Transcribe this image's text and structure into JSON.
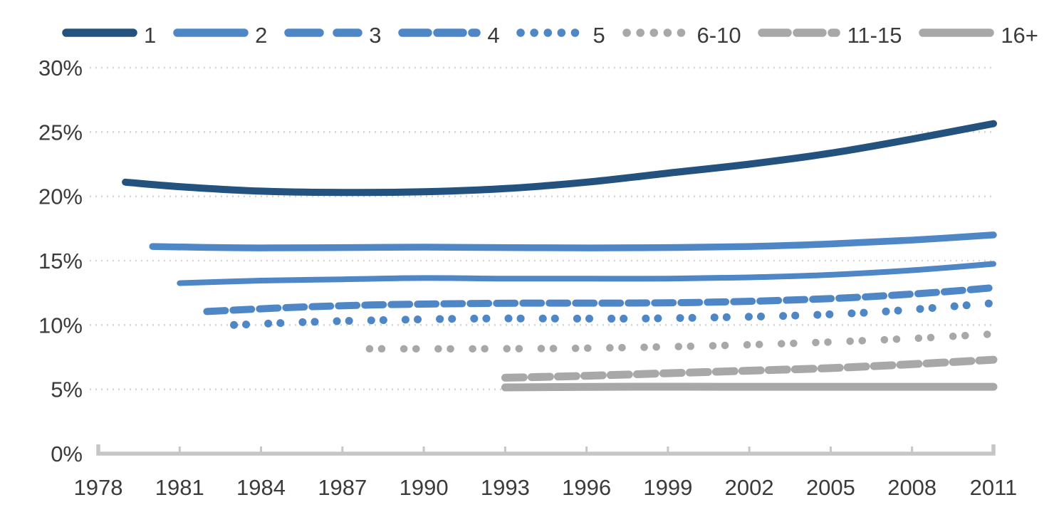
{
  "chart_data": {
    "type": "line",
    "title": "",
    "x_axis": {
      "tick_labels": [
        "1978",
        "1981",
        "1984",
        "1987",
        "1990",
        "1993",
        "1996",
        "1999",
        "2002",
        "2005",
        "2008",
        "2011"
      ],
      "range": [
        1978,
        2011
      ]
    },
    "y_axis": {
      "tick_labels": [
        "30%",
        "25%",
        "20%",
        "15%",
        "10%",
        "5%",
        "0%"
      ],
      "tick_values": [
        30,
        25,
        20,
        15,
        10,
        5,
        0
      ],
      "range": [
        0,
        30
      ],
      "unit": "percent"
    },
    "grid": "horizontal dotted gridlines",
    "legend_position": "top",
    "colors": {
      "dark_blue": "#24527E",
      "blue": "#4E86C6",
      "gray": "#A8A8A8",
      "grid": "#D2D2D2",
      "axis": "#C6C6C6",
      "text": "#3B3B3B"
    },
    "series": [
      {
        "label": "1",
        "color_key": "dark_blue",
        "plot_style": "solid",
        "legend_style": "solid",
        "points": [
          [
            1979,
            21.1
          ],
          [
            1981,
            20.75
          ],
          [
            1984,
            20.4
          ],
          [
            1987,
            20.3
          ],
          [
            1990,
            20.35
          ],
          [
            1993,
            20.6
          ],
          [
            1996,
            21.1
          ],
          [
            1999,
            21.8
          ],
          [
            2002,
            22.5
          ],
          [
            2005,
            23.35
          ],
          [
            2008,
            24.45
          ],
          [
            2011,
            25.65
          ]
        ]
      },
      {
        "label": "2",
        "color_key": "blue",
        "plot_style": "solid",
        "legend_style": "solid",
        "points": [
          [
            1980,
            16.1
          ],
          [
            1983,
            16.0
          ],
          [
            1986,
            16.0
          ],
          [
            1990,
            16.05
          ],
          [
            1994,
            16.0
          ],
          [
            1998,
            16.0
          ],
          [
            2002,
            16.1
          ],
          [
            2005,
            16.3
          ],
          [
            2008,
            16.6
          ],
          [
            2011,
            17.0
          ]
        ]
      },
      {
        "label": "3",
        "color_key": "blue",
        "plot_style": "solid",
        "legend_style": "long-dash",
        "points": [
          [
            1981,
            13.25
          ],
          [
            1984,
            13.45
          ],
          [
            1987,
            13.55
          ],
          [
            1990,
            13.65
          ],
          [
            1993,
            13.6
          ],
          [
            1996,
            13.6
          ],
          [
            1999,
            13.6
          ],
          [
            2002,
            13.7
          ],
          [
            2005,
            13.9
          ],
          [
            2008,
            14.25
          ],
          [
            2011,
            14.75
          ]
        ]
      },
      {
        "label": "4",
        "color_key": "blue",
        "plot_style": "long-dash",
        "legend_style": "dash",
        "points": [
          [
            1982,
            11.05
          ],
          [
            1985,
            11.35
          ],
          [
            1988,
            11.55
          ],
          [
            1991,
            11.65
          ],
          [
            1994,
            11.7
          ],
          [
            1997,
            11.7
          ],
          [
            2000,
            11.75
          ],
          [
            2003,
            11.9
          ],
          [
            2006,
            12.15
          ],
          [
            2009,
            12.55
          ],
          [
            2011,
            12.9
          ]
        ]
      },
      {
        "label": "5",
        "color_key": "blue",
        "plot_style": "dot-pair",
        "legend_style": "dot",
        "points": [
          [
            1983,
            10.0
          ],
          [
            1986,
            10.25
          ],
          [
            1989,
            10.4
          ],
          [
            1992,
            10.5
          ],
          [
            1995,
            10.5
          ],
          [
            1998,
            10.5
          ],
          [
            2001,
            10.6
          ],
          [
            2004,
            10.75
          ],
          [
            2007,
            11.05
          ],
          [
            2011,
            11.7
          ]
        ]
      },
      {
        "label": "6-10",
        "color_key": "gray",
        "plot_style": "dot-pair",
        "legend_style": "dot",
        "points": [
          [
            1988,
            8.15
          ],
          [
            1992,
            8.15
          ],
          [
            1996,
            8.2
          ],
          [
            2000,
            8.35
          ],
          [
            2004,
            8.6
          ],
          [
            2008,
            8.95
          ],
          [
            2011,
            9.3
          ]
        ]
      },
      {
        "label": "11-15",
        "color_key": "gray",
        "plot_style": "long-dash",
        "legend_style": "dash",
        "points": [
          [
            1993,
            5.9
          ],
          [
            1996,
            6.05
          ],
          [
            1999,
            6.25
          ],
          [
            2002,
            6.45
          ],
          [
            2005,
            6.65
          ],
          [
            2008,
            6.95
          ],
          [
            2011,
            7.3
          ]
        ]
      },
      {
        "label": "16+",
        "color_key": "gray",
        "plot_style": "solid",
        "legend_style": "solid",
        "points": [
          [
            1993,
            5.15
          ],
          [
            1997,
            5.2
          ],
          [
            2001,
            5.2
          ],
          [
            2005,
            5.2
          ],
          [
            2008,
            5.2
          ],
          [
            2011,
            5.2
          ]
        ]
      }
    ]
  }
}
